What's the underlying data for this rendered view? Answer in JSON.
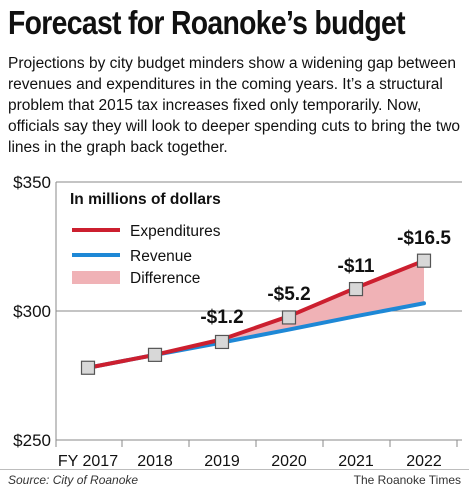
{
  "header": {
    "title": "Forecast for Roanoke’s budget",
    "description": "Projections by city budget minders show a widening gap between revenues and expenditures in the coming years. It’s a structural problem that 2015 tax increases fixed only temporarily. Now, officials say they will look to deeper spending cuts to bring the two lines in the graph back together."
  },
  "footer": {
    "source": "Source: City of Roanoke",
    "credit": "The Roanoke Times"
  },
  "chart_data": {
    "type": "line",
    "title": "In millions of dollars",
    "categories": [
      "FY 2017",
      "2018",
      "2019",
      "2020",
      "2021",
      "2022"
    ],
    "series": [
      {
        "name": "Expenditures",
        "color": "#cc1f2f",
        "values": [
          278,
          283,
          289,
          298,
          309,
          319.5
        ]
      },
      {
        "name": "Revenue",
        "color": "#1e88d6",
        "values": [
          278,
          283,
          287.8,
          292.8,
          298,
          303
        ]
      }
    ],
    "fill": {
      "name": "Difference",
      "color": "#f0b2b6"
    },
    "marker_values": [
      278,
      283,
      288,
      297.5,
      308.5,
      319.5
    ],
    "annotations": [
      {
        "category": "2019",
        "text": "-$1.2"
      },
      {
        "category": "2020",
        "text": "-$5.2"
      },
      {
        "category": "2021",
        "text": "-$11"
      },
      {
        "category": "2022",
        "text": "-$16.5"
      }
    ],
    "ylim": [
      250,
      350
    ],
    "yticks": [
      {
        "value": 350,
        "label": "$350"
      },
      {
        "value": 300,
        "label": "$300"
      },
      {
        "value": 250,
        "label": "$250"
      }
    ],
    "legend_position": "top-left",
    "grid": "horizontal lines at tick values"
  }
}
